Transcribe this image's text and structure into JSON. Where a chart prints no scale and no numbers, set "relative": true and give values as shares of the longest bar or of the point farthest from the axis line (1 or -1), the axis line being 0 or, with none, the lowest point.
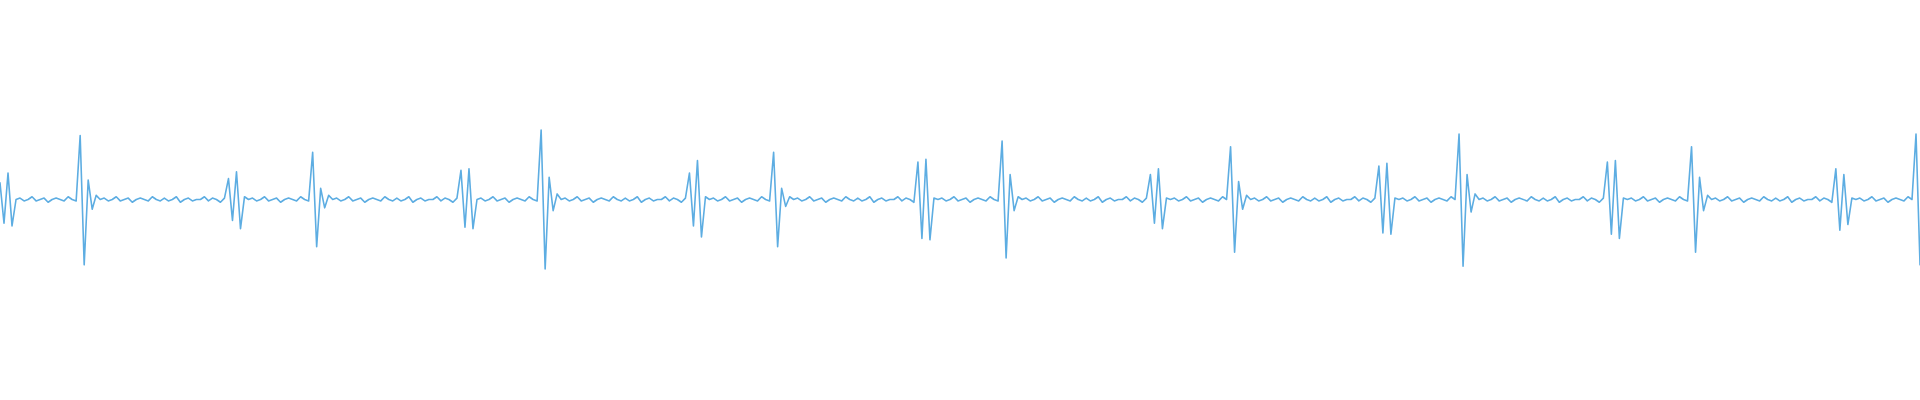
{
  "chart_data": {
    "type": "line",
    "relative": true,
    "color": "#5dade2",
    "categories": [
      null,
      null,
      null,
      null,
      null,
      null,
      null,
      null,
      null,
      null,
      null,
      null,
      null,
      null,
      null,
      null,
      null,
      null,
      null,
      null,
      null,
      null,
      null,
      null,
      null,
      null,
      null,
      null,
      null,
      null,
      null,
      null,
      null,
      null,
      null,
      null,
      null,
      null,
      null,
      null,
      null,
      null,
      null,
      null,
      null,
      null,
      null,
      null,
      null,
      null,
      null,
      null,
      null,
      null,
      null,
      null,
      null,
      null,
      null,
      null,
      null,
      null,
      null,
      null,
      null,
      null,
      null,
      null,
      null,
      null,
      null,
      null,
      null,
      null,
      null,
      null,
      null,
      null,
      null,
      null,
      null,
      null,
      null,
      null,
      null,
      null,
      null,
      null,
      null,
      null,
      null,
      null,
      null,
      null,
      null,
      null,
      null,
      null,
      null,
      null,
      null,
      null,
      null,
      null,
      null,
      null,
      null,
      null,
      null,
      null,
      null,
      null,
      null,
      null,
      null,
      null,
      null,
      null,
      null,
      null,
      null,
      null,
      null,
      null,
      null,
      null,
      null,
      null,
      null,
      null,
      null,
      null,
      null,
      null,
      null,
      null,
      null,
      null,
      null,
      null,
      null,
      null,
      null,
      null,
      null,
      null,
      null,
      null,
      null,
      null,
      null,
      null,
      null,
      null,
      null,
      null,
      null,
      null,
      null,
      null,
      null,
      null,
      null,
      null,
      null,
      null,
      null,
      null,
      null,
      null,
      null,
      null,
      null,
      null,
      null,
      null,
      null,
      null,
      null,
      null,
      null,
      null,
      null,
      null,
      null,
      null,
      null,
      null,
      null,
      null,
      null,
      null,
      null,
      null,
      null,
      null,
      null,
      null,
      null,
      null,
      null,
      null,
      null,
      null,
      null,
      null,
      null,
      null,
      null,
      null,
      null,
      null,
      null,
      null,
      null,
      null,
      null,
      null,
      null,
      null,
      null,
      null,
      null,
      null,
      null,
      null,
      null,
      null,
      null,
      null,
      null,
      null,
      null,
      null,
      null,
      null,
      null,
      null,
      null,
      null,
      null,
      null,
      null,
      null,
      null,
      null,
      null,
      null,
      null,
      null,
      null,
      null,
      null,
      null,
      null,
      null,
      null,
      null,
      null,
      null,
      null,
      null,
      null,
      null,
      null,
      null,
      null,
      null,
      null,
      null,
      null,
      null,
      null,
      null,
      null,
      null,
      null,
      null,
      null,
      null,
      null,
      null,
      null,
      null,
      null,
      null,
      null,
      null,
      null,
      null,
      null,
      null,
      null,
      null,
      null,
      null,
      null,
      null,
      null,
      null,
      null,
      null,
      null,
      null,
      null,
      null,
      null,
      null,
      null,
      null,
      null,
      null,
      null,
      null,
      null,
      null,
      null,
      null,
      null,
      null,
      null,
      null,
      null,
      null,
      null,
      null,
      null,
      null,
      null,
      null,
      null,
      null,
      null,
      null,
      null,
      null,
      null,
      null,
      null,
      null,
      null,
      null,
      null,
      null,
      null,
      null,
      null,
      null,
      null,
      null,
      null,
      null,
      null,
      null,
      null,
      null,
      null,
      null,
      null,
      null,
      null,
      null,
      null,
      null,
      null,
      null,
      null,
      null,
      null,
      null,
      null,
      null,
      null,
      null,
      null,
      null,
      null,
      null,
      null,
      null,
      null,
      null,
      null,
      null,
      null,
      null,
      null,
      null,
      null,
      null,
      null,
      null,
      null,
      null,
      null,
      null,
      null,
      null,
      null,
      null,
      null,
      null,
      null,
      null,
      null,
      null,
      null,
      null,
      null,
      null,
      null,
      null,
      null,
      null,
      null,
      null,
      null,
      null,
      null,
      null,
      null,
      null,
      null,
      null,
      null,
      null,
      null,
      null,
      null,
      null,
      null,
      null,
      null,
      null,
      null,
      null,
      null,
      null,
      null,
      null,
      null,
      null,
      null,
      null,
      null,
      null,
      null,
      null,
      null,
      null,
      null,
      null,
      null,
      null,
      null,
      null,
      null,
      null,
      null,
      null,
      null,
      null,
      null,
      null,
      null,
      null,
      null,
      null,
      null,
      null,
      null,
      null,
      null,
      null,
      null,
      null,
      null,
      null,
      null,
      null
    ],
    "values": [
      0.62,
      0.33,
      0.69,
      0.31,
      0.5,
      0.51,
      0.49,
      0.5,
      0.52,
      0.49,
      0.5,
      0.51,
      0.48,
      0.5,
      0.51,
      0.5,
      0.49,
      0.52,
      0.5,
      0.49,
      0.96,
      0.03,
      0.64,
      0.43,
      0.53,
      0.5,
      0.51,
      0.49,
      0.5,
      0.52,
      0.49,
      0.5,
      0.51,
      0.48,
      0.5,
      0.51,
      0.5,
      0.49,
      0.52,
      0.5,
      0.49,
      0.51,
      0.49,
      0.5,
      0.52,
      0.48,
      0.5,
      0.51,
      0.49,
      0.5,
      0.5,
      0.52,
      0.49,
      0.51,
      0.5,
      0.48,
      0.51,
      0.65,
      0.35,
      0.7,
      0.29,
      0.52,
      0.5,
      0.51,
      0.49,
      0.5,
      0.52,
      0.49,
      0.5,
      0.51,
      0.48,
      0.5,
      0.51,
      0.5,
      0.49,
      0.52,
      0.5,
      0.49,
      0.84,
      0.16,
      0.58,
      0.44,
      0.53,
      0.5,
      0.51,
      0.49,
      0.5,
      0.52,
      0.49,
      0.5,
      0.51,
      0.48,
      0.5,
      0.51,
      0.5,
      0.49,
      0.52,
      0.5,
      0.49,
      0.51,
      0.49,
      0.5,
      0.52,
      0.48,
      0.5,
      0.51,
      0.49,
      0.5,
      0.5,
      0.52,
      0.49,
      0.51,
      0.5,
      0.48,
      0.51,
      0.71,
      0.3,
      0.72,
      0.29,
      0.5,
      0.51,
      0.49,
      0.5,
      0.52,
      0.49,
      0.5,
      0.51,
      0.48,
      0.5,
      0.51,
      0.5,
      0.49,
      0.52,
      0.5,
      0.49,
      1,
      0,
      0.66,
      0.42,
      0.54,
      0.5,
      0.51,
      0.49,
      0.5,
      0.52,
      0.49,
      0.5,
      0.51,
      0.48,
      0.5,
      0.51,
      0.5,
      0.49,
      0.52,
      0.5,
      0.49,
      0.51,
      0.49,
      0.5,
      0.52,
      0.48,
      0.5,
      0.51,
      0.49,
      0.5,
      0.5,
      0.52,
      0.49,
      0.51,
      0.5,
      0.48,
      0.51,
      0.69,
      0.31,
      0.78,
      0.23,
      0.52,
      0.5,
      0.51,
      0.49,
      0.5,
      0.52,
      0.49,
      0.5,
      0.51,
      0.48,
      0.5,
      0.51,
      0.5,
      0.49,
      0.52,
      0.5,
      0.49,
      0.84,
      0.16,
      0.58,
      0.45,
      0.52,
      0.5,
      0.51,
      0.49,
      0.5,
      0.52,
      0.49,
      0.5,
      0.51,
      0.48,
      0.5,
      0.51,
      0.5,
      0.49,
      0.52,
      0.5,
      0.49,
      0.51,
      0.49,
      0.5,
      0.52,
      0.48,
      0.5,
      0.51,
      0.49,
      0.5,
      0.5,
      0.52,
      0.49,
      0.51,
      0.5,
      0.48,
      0.77,
      0.22,
      0.79,
      0.21,
      0.51,
      0.5,
      0.51,
      0.49,
      0.5,
      0.52,
      0.49,
      0.5,
      0.51,
      0.48,
      0.5,
      0.51,
      0.5,
      0.49,
      0.52,
      0.5,
      0.49,
      0.92,
      0.08,
      0.68,
      0.42,
      0.52,
      0.5,
      0.51,
      0.49,
      0.5,
      0.52,
      0.49,
      0.5,
      0.51,
      0.48,
      0.5,
      0.51,
      0.5,
      0.49,
      0.52,
      0.5,
      0.49,
      0.51,
      0.49,
      0.5,
      0.52,
      0.48,
      0.5,
      0.51,
      0.49,
      0.5,
      0.5,
      0.52,
      0.49,
      0.51,
      0.5,
      0.48,
      0.51,
      0.68,
      0.33,
      0.72,
      0.29,
      0.51,
      0.5,
      0.51,
      0.49,
      0.5,
      0.52,
      0.49,
      0.5,
      0.51,
      0.48,
      0.5,
      0.51,
      0.5,
      0.49,
      0.52,
      0.5,
      0.88,
      0.12,
      0.63,
      0.43,
      0.53,
      0.5,
      0.51,
      0.49,
      0.5,
      0.52,
      0.49,
      0.5,
      0.51,
      0.48,
      0.5,
      0.51,
      0.5,
      0.49,
      0.52,
      0.5,
      0.49,
      0.51,
      0.49,
      0.5,
      0.52,
      0.48,
      0.5,
      0.51,
      0.49,
      0.5,
      0.5,
      0.52,
      0.49,
      0.51,
      0.5,
      0.48,
      0.51,
      0.74,
      0.26,
      0.76,
      0.25,
      0.51,
      0.5,
      0.51,
      0.49,
      0.5,
      0.52,
      0.49,
      0.5,
      0.51,
      0.48,
      0.5,
      0.51,
      0.5,
      0.49,
      0.52,
      0.5,
      0.97,
      0.02,
      0.68,
      0.41,
      0.54,
      0.5,
      0.51,
      0.49,
      0.5,
      0.52,
      0.49,
      0.5,
      0.51,
      0.48,
      0.5,
      0.51,
      0.5,
      0.49,
      0.52,
      0.5,
      0.49,
      0.51,
      0.49,
      0.5,
      0.52,
      0.48,
      0.5,
      0.51,
      0.49,
      0.5,
      0.5,
      0.52,
      0.49,
      0.51,
      0.5,
      0.48,
      0.51,
      0.77,
      0.25,
      0.78,
      0.22,
      0.51,
      0.5,
      0.51,
      0.49,
      0.5,
      0.52,
      0.49,
      0.5,
      0.51,
      0.48,
      0.5,
      0.51,
      0.5,
      0.49,
      0.52,
      0.5,
      0.49,
      0.88,
      0.12,
      0.66,
      0.42,
      0.53,
      0.5,
      0.51,
      0.49,
      0.5,
      0.52,
      0.49,
      0.5,
      0.51,
      0.48,
      0.5,
      0.51,
      0.5,
      0.49,
      0.52,
      0.5,
      0.49,
      0.51,
      0.49,
      0.5,
      0.52,
      0.48,
      0.5,
      0.51,
      0.49,
      0.5,
      0.5,
      0.52,
      0.49,
      0.51,
      0.5,
      0.48,
      0.72,
      0.28,
      0.68,
      0.32,
      0.51,
      0.5,
      0.51,
      0.49,
      0.5,
      0.52,
      0.49,
      0.5,
      0.51,
      0.48,
      0.5,
      0.51,
      0.5,
      0.49,
      0.52,
      0.5,
      0.97,
      0.03
    ]
  }
}
